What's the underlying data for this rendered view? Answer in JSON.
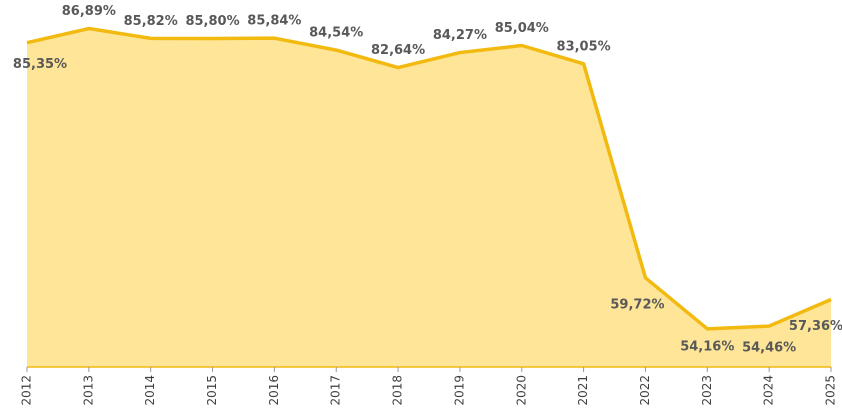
{
  "chart_data": {
    "type": "area",
    "categories": [
      "2012",
      "2013",
      "2014",
      "2015",
      "2016",
      "2017",
      "2018",
      "2019",
      "2020",
      "2021",
      "2022",
      "2023",
      "2024",
      "2025"
    ],
    "values": [
      85.35,
      86.89,
      85.82,
      85.8,
      85.84,
      84.54,
      82.64,
      84.27,
      85.04,
      83.05,
      59.72,
      54.16,
      54.46,
      57.36
    ],
    "value_labels": [
      "85,35%",
      "86,89%",
      "85,82%",
      "85,80%",
      "85,84%",
      "84,54%",
      "82,64%",
      "84,27%",
      "85,04%",
      "83,05%",
      "59,72%",
      "54,16%",
      "54,46%",
      "57,36%"
    ],
    "color": "#f2b90f",
    "fill": "#fee597",
    "ylim": [
      50,
      90
    ]
  }
}
